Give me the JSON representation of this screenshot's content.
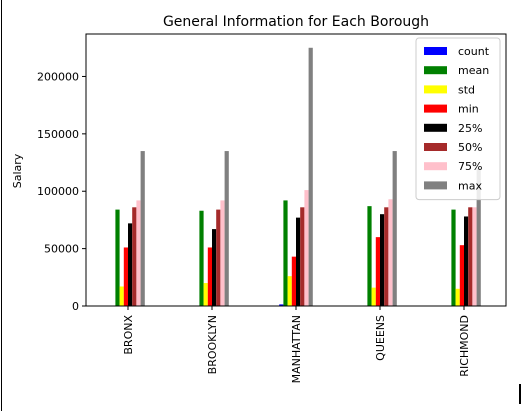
{
  "chart_data": {
    "type": "bar",
    "title": "General Information for Each Borough",
    "xlabel": "",
    "ylabel": "Salary",
    "ylim": [
      0,
      237000
    ],
    "yticks": [
      0,
      50000,
      100000,
      150000,
      200000
    ],
    "ytick_labels": [
      "0",
      "50000",
      "100000",
      "150000",
      "200000"
    ],
    "categories": [
      "BRONX",
      "BROOKLYN",
      "MANHATTAN",
      "QUEENS",
      "RICHMOND"
    ],
    "grid": false,
    "legend_position": "top-right",
    "series": [
      {
        "name": "count",
        "color": "#0000ff",
        "values": [
          200,
          200,
          1400,
          200,
          100
        ]
      },
      {
        "name": "mean",
        "color": "#008000",
        "values": [
          84000,
          83000,
          92000,
          87000,
          84000
        ]
      },
      {
        "name": "std",
        "color": "#ffff00",
        "values": [
          17000,
          20000,
          26000,
          16000,
          15000
        ]
      },
      {
        "name": "min",
        "color": "#ff0000",
        "values": [
          51000,
          51000,
          43000,
          60000,
          53000
        ]
      },
      {
        "name": "25%",
        "color": "#000000",
        "values": [
          72000,
          67000,
          77000,
          80000,
          78000
        ]
      },
      {
        "name": "50%",
        "color": "#a52a2a",
        "values": [
          86000,
          84000,
          86000,
          86000,
          86000
        ]
      },
      {
        "name": "75%",
        "color": "#ffc0cb",
        "values": [
          92000,
          92000,
          101000,
          93000,
          86000
        ]
      },
      {
        "name": "max",
        "color": "#808080",
        "values": [
          135000,
          135000,
          225000,
          135000,
          120000
        ]
      }
    ]
  }
}
